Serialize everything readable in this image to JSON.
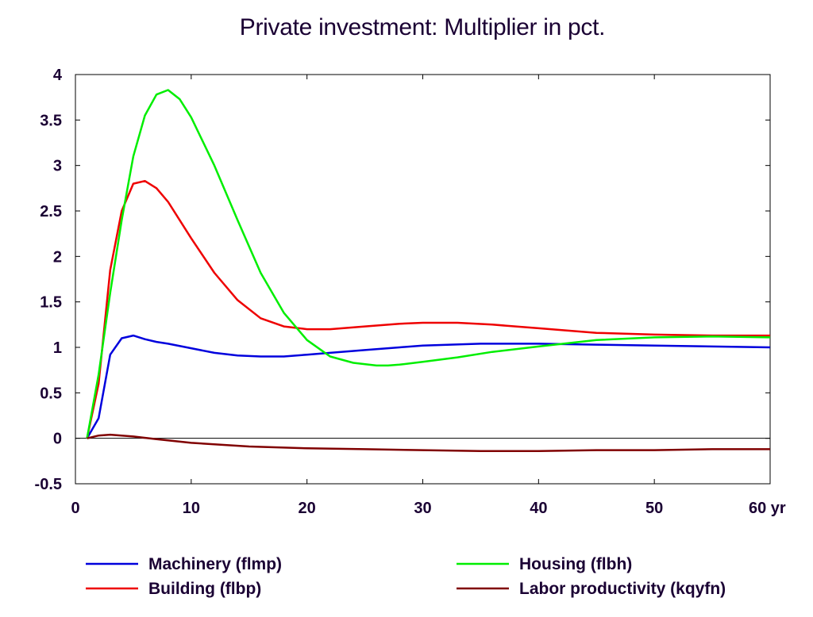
{
  "chart_data": {
    "type": "line",
    "title": "Private investment: Multiplier in pct.",
    "x_unit_label": "yr",
    "xlim": [
      0,
      60
    ],
    "ylim": [
      -0.5,
      4
    ],
    "x_ticks": [
      0,
      10,
      20,
      30,
      40,
      50,
      60
    ],
    "y_ticks": [
      -0.5,
      0,
      0.5,
      1,
      1.5,
      2,
      2.5,
      3,
      3.5,
      4
    ],
    "y_tick_labels": [
      "-0.5",
      "0",
      "0.5",
      "1",
      "1.5",
      "2",
      "2.5",
      "3",
      "3.5",
      "4"
    ],
    "x_tick_labels": [
      "0",
      "10",
      "20",
      "30",
      "40",
      "50",
      "60 yr"
    ],
    "grid": false,
    "zero_line": true,
    "legend_position": "bottom",
    "series": [
      {
        "name": "Machinery (flmp)",
        "color": "#0000dd",
        "x": [
          1,
          2,
          3,
          4,
          5,
          6,
          7,
          8,
          10,
          12,
          14,
          16,
          18,
          20,
          22,
          25,
          28,
          30,
          35,
          40,
          45,
          50,
          55,
          60
        ],
        "values": [
          0,
          0.22,
          0.92,
          1.1,
          1.13,
          1.09,
          1.06,
          1.04,
          0.99,
          0.94,
          0.91,
          0.9,
          0.9,
          0.92,
          0.94,
          0.97,
          1.0,
          1.02,
          1.04,
          1.04,
          1.03,
          1.02,
          1.01,
          1.0
        ]
      },
      {
        "name": "Building (flbp)",
        "color": "#ee0000",
        "x": [
          1,
          2,
          3,
          4,
          5,
          6,
          7,
          8,
          10,
          12,
          14,
          16,
          18,
          20,
          22,
          25,
          28,
          30,
          33,
          36,
          40,
          45,
          50,
          55,
          60
        ],
        "values": [
          0,
          0.6,
          1.85,
          2.5,
          2.8,
          2.83,
          2.75,
          2.6,
          2.2,
          1.82,
          1.52,
          1.32,
          1.23,
          1.2,
          1.2,
          1.23,
          1.26,
          1.27,
          1.27,
          1.25,
          1.21,
          1.16,
          1.14,
          1.13,
          1.13
        ]
      },
      {
        "name": "Housing (flbh)",
        "color": "#00ee00",
        "x": [
          1,
          2,
          3,
          4,
          5,
          6,
          7,
          8,
          9,
          10,
          12,
          14,
          16,
          18,
          20,
          22,
          24,
          26,
          27,
          28,
          30,
          33,
          36,
          40,
          45,
          50,
          55,
          60
        ],
        "values": [
          0,
          0.7,
          1.6,
          2.4,
          3.1,
          3.55,
          3.78,
          3.83,
          3.73,
          3.53,
          3.0,
          2.4,
          1.82,
          1.38,
          1.08,
          0.9,
          0.83,
          0.8,
          0.8,
          0.81,
          0.84,
          0.89,
          0.95,
          1.01,
          1.08,
          1.11,
          1.12,
          1.11
        ]
      },
      {
        "name": "Labor productivity (kqyfn)",
        "color": "#800000",
        "x": [
          1,
          2,
          3,
          4,
          5,
          7,
          10,
          15,
          20,
          25,
          30,
          35,
          40,
          45,
          50,
          55,
          60
        ],
        "values": [
          0,
          0.03,
          0.04,
          0.03,
          0.02,
          -0.01,
          -0.05,
          -0.09,
          -0.11,
          -0.12,
          -0.13,
          -0.14,
          -0.14,
          -0.13,
          -0.13,
          -0.12,
          -0.12
        ]
      }
    ]
  }
}
